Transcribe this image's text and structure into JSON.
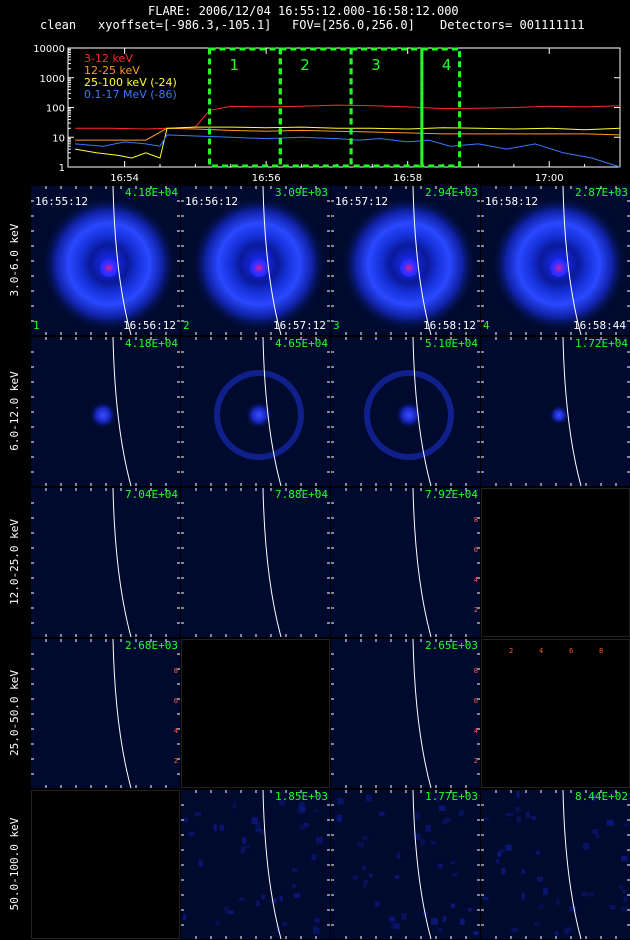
{
  "header": {
    "line1": "FLARE: 2006/12/04 16:55:12.000-16:58:12.000",
    "mode": "clean",
    "xyoffset": "xyoffset=[-986.3,-105.1]",
    "fov": "FOV=[256.0,256.0]",
    "detectors": "Detectors= 001111111"
  },
  "colors": {
    "red": "#ff2a2a",
    "orange": "#ff9a1a",
    "yellow": "#ffff33",
    "blue": "#3a78ff",
    "green": "#22ff22",
    "white": "#ffffff",
    "panel_bg": "#000a2e",
    "axis_ticks": "#ff5a3a"
  },
  "chart_data": {
    "type": "line",
    "y_scale": "log",
    "ylim": [
      1,
      10000
    ],
    "y_ticks": [
      "10000",
      "1000",
      "100",
      "10",
      "1"
    ],
    "x_ticks": [
      "16:54",
      "16:56",
      "16:58",
      "17:00"
    ],
    "xlim_minutes": [
      53.2,
      61.0
    ],
    "legend": [
      "3-12 keV",
      "12-25 keV",
      "25-100 keV (-24)",
      "0.1-17 MeV (-86)"
    ],
    "intervals": [
      "1",
      "2",
      "3",
      "4"
    ],
    "interval_edges_minutes": [
      55.2,
      56.2,
      57.2,
      58.2,
      58.733
    ],
    "series": [
      {
        "name": "3-12 keV",
        "color": "#ff2a2a",
        "x": [
          53.3,
          53.8,
          54.3,
          54.6,
          55.0,
          55.2,
          55.5,
          56.0,
          56.5,
          57.0,
          57.5,
          58.0,
          58.5,
          59.0,
          59.5,
          60.0,
          60.5,
          61.0
        ],
        "y": [
          20,
          20,
          19,
          20,
          22,
          80,
          110,
          105,
          110,
          120,
          115,
          105,
          92,
          95,
          100,
          110,
          105,
          115
        ]
      },
      {
        "name": "12-25 keV",
        "color": "#ff9a1a",
        "x": [
          53.3,
          53.8,
          54.3,
          54.6,
          55.0,
          55.5,
          56.0,
          56.5,
          57.0,
          57.5,
          58.0,
          58.5,
          59.0,
          59.5,
          60.0,
          60.5,
          61.0
        ],
        "y": [
          8,
          8,
          8,
          20,
          19,
          17,
          16,
          17,
          16,
          15,
          14,
          13,
          13,
          13,
          13,
          13,
          12
        ]
      },
      {
        "name": "25-100 keV (-24)",
        "color": "#ffff33",
        "x": [
          53.3,
          53.6,
          53.9,
          54.1,
          54.3,
          54.5,
          54.6,
          55.0,
          55.5,
          56.0,
          56.5,
          57.0,
          57.5,
          58.0,
          58.5,
          59.0,
          59.5,
          60.0,
          60.5,
          61.0
        ],
        "y": [
          4,
          3,
          2.5,
          2,
          3,
          2,
          20,
          22,
          22,
          21,
          22,
          20,
          20,
          19,
          21,
          20,
          19,
          20,
          18,
          20
        ]
      },
      {
        "name": "0.1-17 MeV (-86)",
        "color": "#3a78ff",
        "x": [
          53.3,
          53.7,
          54.0,
          54.3,
          54.5,
          54.6,
          55.0,
          55.5,
          56.0,
          56.5,
          57.0,
          57.3,
          57.6,
          58.0,
          58.3,
          58.6,
          59.0,
          59.4,
          59.8,
          60.2,
          60.6,
          61.0
        ],
        "y": [
          6,
          5,
          7,
          6,
          5,
          12,
          11,
          10,
          9,
          10,
          9,
          8,
          9,
          7,
          8,
          5,
          6,
          4,
          6,
          3,
          2,
          1
        ]
      }
    ]
  },
  "rows": [
    {
      "label": "3.0-6.0 keV",
      "panels": [
        {
          "peak": "4.18E+04",
          "start": "16:55:12",
          "end": "16:56:12",
          "idx": "1",
          "type": "ring"
        },
        {
          "peak": "3.09E+03",
          "start": "16:56:12",
          "end": "16:57:12",
          "idx": "2",
          "type": "ring"
        },
        {
          "peak": "2.94E+03",
          "start": "16:57:12",
          "end": "16:58:12",
          "idx": "3",
          "type": "ring"
        },
        {
          "peak": "2.87E+03",
          "start": "16:58:12",
          "end": "16:58:44",
          "idx": "4",
          "type": "ring"
        }
      ]
    },
    {
      "label": "6.0-12.0 keV",
      "panels": [
        {
          "peak": "4.18E+04",
          "type": "core"
        },
        {
          "peak": "4.65E+04",
          "type": "faintring"
        },
        {
          "peak": "5.10E+04",
          "type": "faintring"
        },
        {
          "peak": "1.72E+04",
          "type": "small"
        }
      ]
    },
    {
      "label": "12.0-25.0 keV",
      "panels": [
        {
          "peak": "7.04E+04",
          "type": "empty"
        },
        {
          "peak": "7.88E+04",
          "type": "empty"
        },
        {
          "peak": "7.92E+04",
          "type": "empty"
        },
        {
          "peak": "",
          "type": "black"
        }
      ]
    },
    {
      "label": "25.0-50.0 keV",
      "panels": [
        {
          "peak": "2.68E+03",
          "type": "empty"
        },
        {
          "peak": "",
          "type": "black"
        },
        {
          "peak": "2.65E+03",
          "type": "empty"
        },
        {
          "peak": "",
          "type": "black"
        }
      ]
    },
    {
      "label": "50.0-100.0 keV",
      "panels": [
        {
          "peak": "",
          "type": "black"
        },
        {
          "peak": "1.85E+03",
          "type": "noise"
        },
        {
          "peak": "1.77E+03",
          "type": "noise"
        },
        {
          "peak": "8.44E+02",
          "type": "noise"
        }
      ]
    }
  ],
  "side_axis_ticks": [
    "8",
    "6",
    "4",
    "2"
  ],
  "top_axis_ticks": [
    "2",
    "4",
    "6",
    "8"
  ]
}
